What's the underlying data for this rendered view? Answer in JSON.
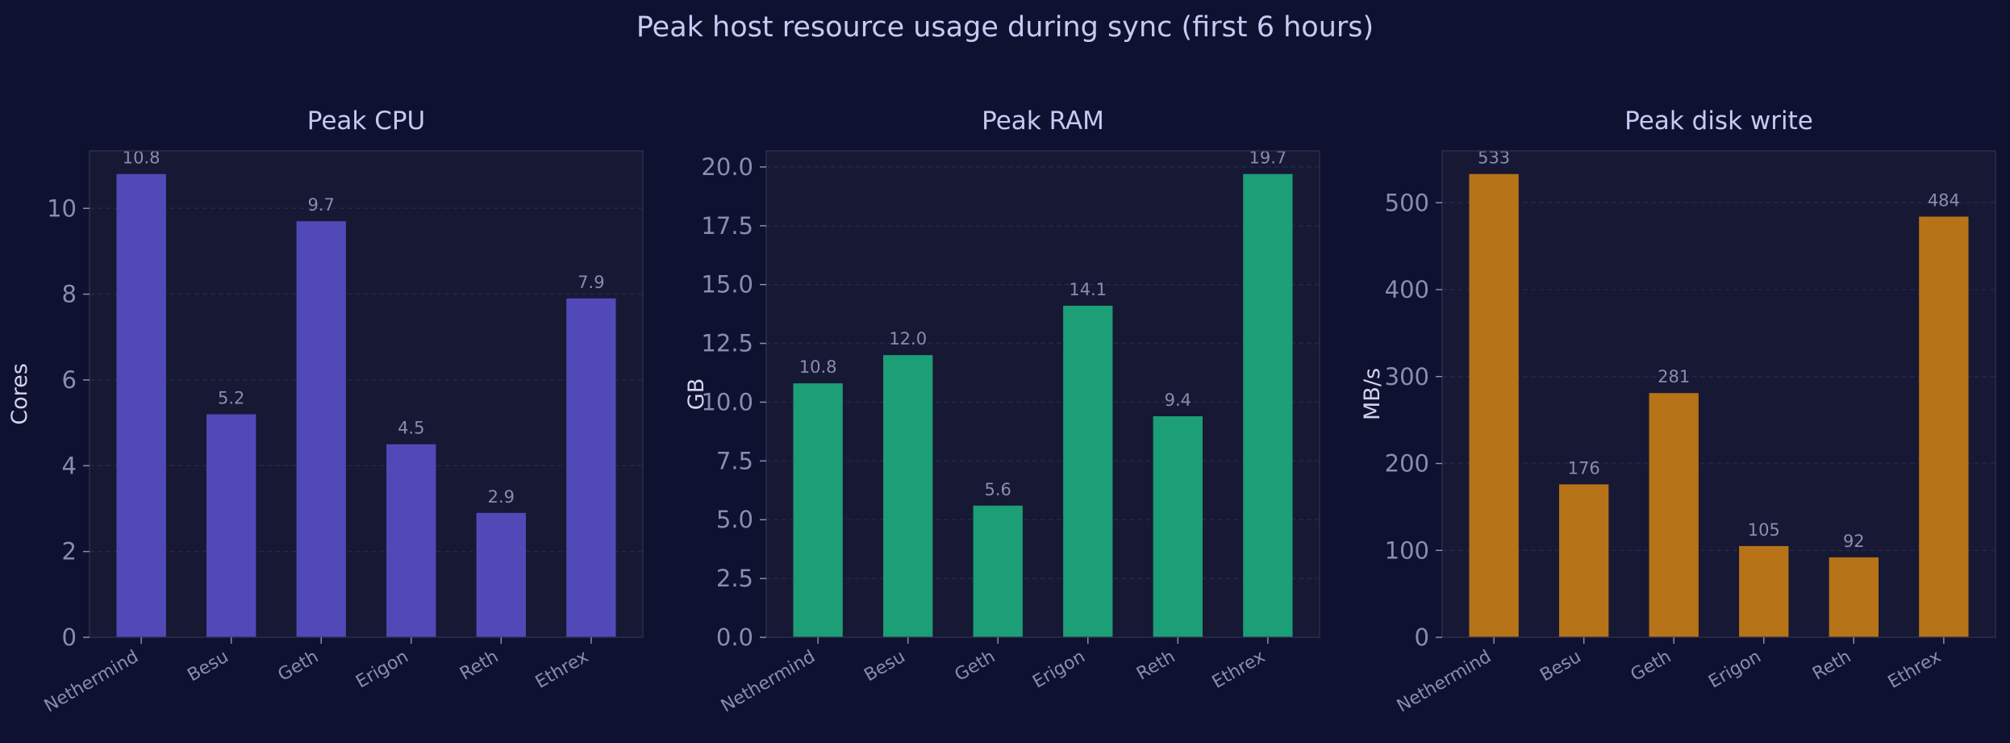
{
  "figure": {
    "title": "Peak host resource usage during sync (first 6 hours)",
    "background": "#0f1130",
    "plot_background": "#171833",
    "spine_color": "#2b2d4a",
    "grid_color": "#24264a",
    "text_color": "#c7c9f2",
    "tick_color": "#8a8cb0"
  },
  "chart_data": [
    {
      "type": "bar",
      "title": "Peak CPU",
      "xlabel": "",
      "ylabel": "Cores",
      "categories": [
        "Nethermind",
        "Besu",
        "Geth",
        "Erigon",
        "Reth",
        "Ethrex"
      ],
      "values": [
        10.8,
        5.2,
        9.7,
        4.5,
        2.9,
        7.9
      ],
      "value_labels": [
        "10.8",
        "5.2",
        "9.7",
        "4.5",
        "2.9",
        "7.9"
      ],
      "ylim": [
        0,
        11.34
      ],
      "yticks": [
        0,
        2,
        4,
        6,
        8,
        10
      ],
      "ytick_labels": [
        "0",
        "2",
        "4",
        "6",
        "8",
        "10"
      ],
      "color": "#5249b8",
      "grid": true
    },
    {
      "type": "bar",
      "title": "Peak RAM",
      "xlabel": "",
      "ylabel": "GB",
      "categories": [
        "Nethermind",
        "Besu",
        "Geth",
        "Erigon",
        "Reth",
        "Ethrex"
      ],
      "values": [
        10.8,
        12.0,
        5.6,
        14.1,
        9.4,
        19.7
      ],
      "value_labels": [
        "10.8",
        "12.0",
        "5.6",
        "14.1",
        "9.4",
        "19.7"
      ],
      "ylim": [
        0,
        20.685
      ],
      "yticks": [
        0,
        2.5,
        5,
        7.5,
        10,
        12.5,
        15,
        17.5,
        20
      ],
      "ytick_labels": [
        "0.0",
        "2.5",
        "5.0",
        "7.5",
        "10.0",
        "12.5",
        "15.0",
        "17.5",
        "20.0"
      ],
      "color": "#1c9e76",
      "grid": true
    },
    {
      "type": "bar",
      "title": "Peak disk write",
      "xlabel": "",
      "ylabel": "MB/s",
      "categories": [
        "Nethermind",
        "Besu",
        "Geth",
        "Erigon",
        "Reth",
        "Ethrex"
      ],
      "values": [
        533,
        176,
        281,
        105,
        92,
        484
      ],
      "value_labels": [
        "533",
        "176",
        "281",
        "105",
        "92",
        "484"
      ],
      "ylim": [
        0,
        559.65
      ],
      "yticks": [
        0,
        100,
        200,
        300,
        400,
        500
      ],
      "ytick_labels": [
        "0",
        "100",
        "200",
        "300",
        "400",
        "500"
      ],
      "color": "#b67318",
      "grid": true
    }
  ]
}
